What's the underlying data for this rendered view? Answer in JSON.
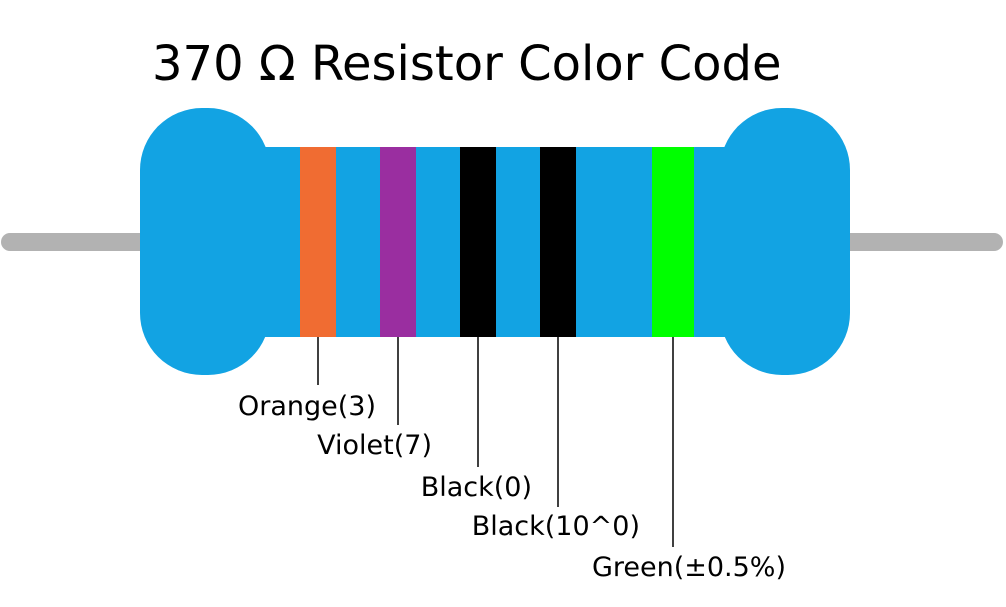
{
  "title": "370 Ω Resistor Color Code",
  "bands": [
    {
      "label": "Orange(3)"
    },
    {
      "label": "Violet(7)"
    },
    {
      "label": "Black(0)"
    },
    {
      "label": "Black(10^0)"
    },
    {
      "label": "Green(±0.5%)"
    }
  ]
}
